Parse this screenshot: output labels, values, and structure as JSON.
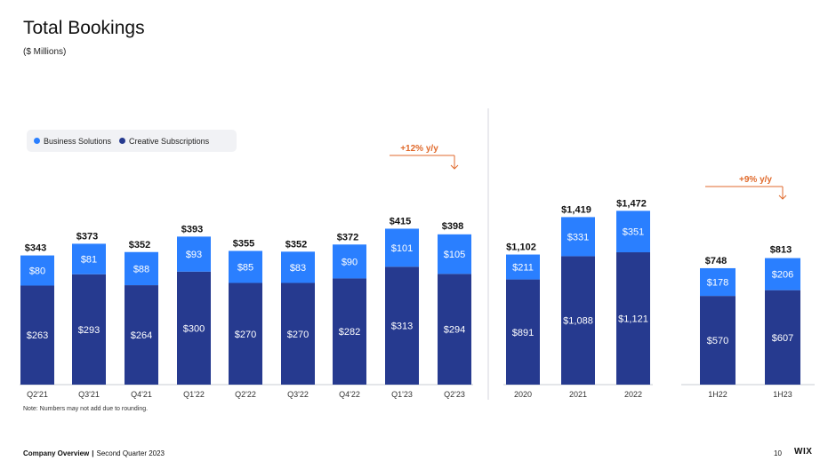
{
  "header": {
    "title": "Total Bookings",
    "subtitle": "($ Millions)"
  },
  "legend": {
    "items": [
      {
        "label": "Business Solutions",
        "color": "#2a7fff"
      },
      {
        "label": "Creative Subscriptions",
        "color": "#263a8f"
      }
    ]
  },
  "chart_data": [
    {
      "type": "bar",
      "stacked": true,
      "categories": [
        "Q2'21",
        "Q3'21",
        "Q4'21",
        "Q1'22",
        "Q2'22",
        "Q3'22",
        "Q4'22",
        "Q1'23",
        "Q2'23"
      ],
      "series": [
        {
          "name": "Creative Subscriptions",
          "values": [
            263,
            293,
            264,
            300,
            270,
            270,
            282,
            313,
            294
          ],
          "labels": [
            "$263",
            "$293",
            "$264",
            "$300",
            "$270",
            "$270",
            "$282",
            "$313",
            "$294"
          ],
          "color": "#263a8f"
        },
        {
          "name": "Business Solutions",
          "values": [
            80,
            81,
            88,
            93,
            85,
            83,
            90,
            101,
            105
          ],
          "labels": [
            "$80",
            "$81",
            "$88",
            "$93",
            "$85",
            "$83",
            "$90",
            "$101",
            "$105"
          ],
          "color": "#2a7fff"
        }
      ],
      "totals": [
        "$343",
        "$373",
        "$352",
        "$393",
        "$355",
        "$352",
        "$372",
        "$415",
        "$398"
      ],
      "annotation": {
        "text": "+12% y/y",
        "color": "#e06a2c",
        "from": "Q1'23",
        "to": "Q2'23"
      }
    },
    {
      "type": "bar",
      "stacked": true,
      "categories": [
        "2020",
        "2021",
        "2022"
      ],
      "series": [
        {
          "name": "Creative Subscriptions",
          "values": [
            891,
            1088,
            1121
          ],
          "labels": [
            "$891",
            "$1,088",
            "$1,121"
          ],
          "color": "#263a8f"
        },
        {
          "name": "Business Solutions",
          "values": [
            211,
            331,
            351
          ],
          "labels": [
            "$211",
            "$331",
            "$351"
          ],
          "color": "#2a7fff"
        }
      ],
      "totals": [
        "$1,102",
        "$1,419",
        "$1,472"
      ]
    },
    {
      "type": "bar",
      "stacked": true,
      "categories": [
        "1H22",
        "1H23"
      ],
      "series": [
        {
          "name": "Creative Subscriptions",
          "values": [
            570,
            607
          ],
          "labels": [
            "$570",
            "$607"
          ],
          "color": "#263a8f"
        },
        {
          "name": "Business Solutions",
          "values": [
            178,
            206
          ],
          "labels": [
            "$178",
            "$206"
          ],
          "color": "#2a7fff"
        }
      ],
      "totals": [
        "$748",
        "$813"
      ],
      "annotation": {
        "text": "+9% y/y",
        "color": "#e06a2c",
        "from": "1H22",
        "to": "1H23"
      }
    }
  ],
  "note": "Note: Numbers may not add due to rounding.",
  "footer": {
    "company": "Company Overview",
    "separator": "|",
    "period": "Second Quarter 2023",
    "page_number": "10",
    "logo_text": "WIX"
  }
}
